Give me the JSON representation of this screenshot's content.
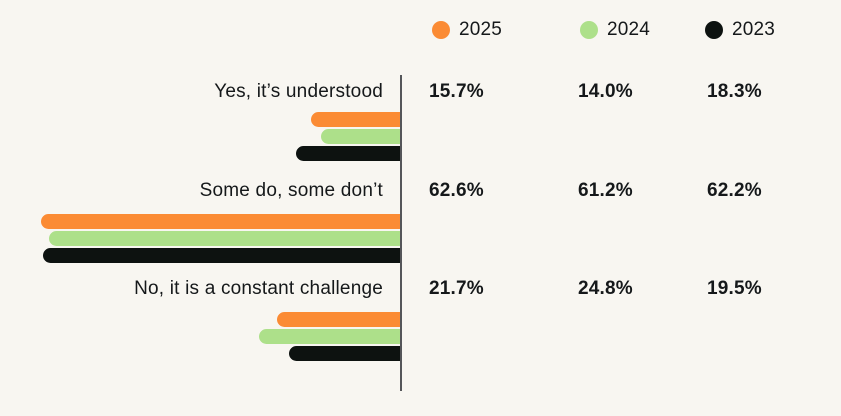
{
  "colors": {
    "background": "#F8F6F1",
    "text": "#15181A",
    "axis_line": "#55565A",
    "series_2025": "#FB8B34",
    "series_2024": "#ADE08A",
    "series_2023": "#0D1210"
  },
  "chart_data": {
    "type": "bar",
    "orientation": "horizontal",
    "bar_direction": "bars grow leftward from a vertical axis on the right of the plot area",
    "title": "",
    "xlabel": "",
    "ylabel": "",
    "value_unit": "%",
    "grid": false,
    "legend_position": "top",
    "categories": [
      "Yes, it’s understood",
      "Some do, some don’t",
      "No, it is a constant challenge"
    ],
    "series": [
      {
        "name": "2025",
        "color": "#FB8B34",
        "values": [
          15.7,
          62.6,
          21.7
        ],
        "labels": [
          "15.7%",
          "62.6%",
          "21.7%"
        ]
      },
      {
        "name": "2024",
        "color": "#ADE08A",
        "values": [
          14.0,
          61.2,
          24.8
        ],
        "labels": [
          "14.0%",
          "61.2%",
          "24.8%"
        ]
      },
      {
        "name": "2023",
        "color": "#0D1210",
        "values": [
          18.3,
          62.2,
          19.5
        ],
        "labels": [
          "18.3%",
          "62.2%",
          "19.5%"
        ]
      }
    ]
  }
}
